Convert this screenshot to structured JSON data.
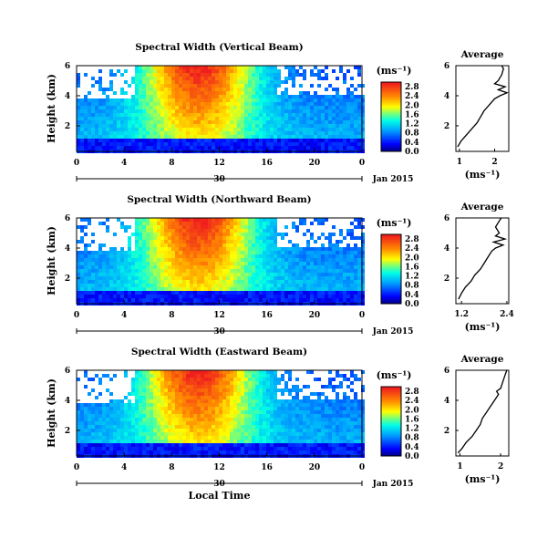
{
  "chart_data": [
    {
      "type": "heatmap",
      "title": "Spectral Width (Vertical Beam)",
      "ylabel": "Height (km)",
      "x_ticks": [
        "0",
        "4",
        "8",
        "12",
        "16",
        "20",
        "0"
      ],
      "y_ticks": [
        "2",
        "4",
        "6"
      ],
      "date_label": "30",
      "month_label": "Jan 2015",
      "colorbar": {
        "unit": "(ms⁻¹)",
        "ticks": [
          "0.0",
          "0.4",
          "0.8",
          "1.2",
          "1.6",
          "2.0",
          "2.4",
          "2.8"
        ],
        "range": [
          0,
          3.0
        ]
      },
      "average": {
        "title": "Average",
        "xlabel": "(ms⁻¹)",
        "x_ticks": [
          "1",
          "2"
        ],
        "y_ticks": [
          "2",
          "4",
          "6"
        ],
        "xlim": [
          0.9,
          2.4
        ],
        "profile": [
          [
            0.6,
            0.95
          ],
          [
            1.0,
            1.05
          ],
          [
            1.4,
            1.2
          ],
          [
            1.8,
            1.35
          ],
          [
            2.2,
            1.5
          ],
          [
            2.6,
            1.6
          ],
          [
            3.0,
            1.7
          ],
          [
            3.4,
            1.85
          ],
          [
            3.8,
            2.0
          ],
          [
            4.0,
            2.15
          ],
          [
            4.2,
            2.35
          ],
          [
            4.4,
            2.1
          ],
          [
            4.6,
            2.3
          ],
          [
            4.8,
            2.0
          ],
          [
            5.0,
            2.1
          ],
          [
            5.4,
            2.2
          ],
          [
            5.8,
            2.25
          ],
          [
            6.0,
            2.2
          ]
        ]
      }
    },
    {
      "type": "heatmap",
      "title": "Spectral Width (Northward Beam)",
      "ylabel": "Height (km)",
      "x_ticks": [
        "0",
        "4",
        "8",
        "12",
        "16",
        "20",
        "0"
      ],
      "y_ticks": [
        "2",
        "4",
        "6"
      ],
      "date_label": "30",
      "month_label": "Jan 2015",
      "colorbar": {
        "unit": "(ms⁻¹)",
        "ticks": [
          "0.0",
          "0.4",
          "0.8",
          "1.2",
          "1.6",
          "2.0",
          "2.4",
          "2.8"
        ],
        "range": [
          0,
          3.0
        ]
      },
      "average": {
        "title": "Average",
        "xlabel": "(ms⁻¹)",
        "x_ticks": [
          "1.2",
          "2.4"
        ],
        "y_ticks": [
          "2",
          "4",
          "6"
        ],
        "xlim": [
          1.05,
          2.45
        ],
        "profile": [
          [
            0.6,
            1.12
          ],
          [
            1.0,
            1.2
          ],
          [
            1.4,
            1.3
          ],
          [
            1.8,
            1.45
          ],
          [
            2.2,
            1.55
          ],
          [
            2.6,
            1.7
          ],
          [
            3.0,
            1.8
          ],
          [
            3.4,
            1.9
          ],
          [
            3.8,
            2.0
          ],
          [
            4.0,
            2.1
          ],
          [
            4.2,
            2.3
          ],
          [
            4.4,
            2.05
          ],
          [
            4.6,
            2.35
          ],
          [
            4.8,
            2.1
          ],
          [
            5.0,
            2.2
          ],
          [
            5.4,
            2.1
          ],
          [
            5.8,
            2.2
          ],
          [
            6.0,
            2.25
          ]
        ]
      }
    },
    {
      "type": "heatmap",
      "title": "Spectral Width (Eastward Beam)",
      "ylabel": "Height (km)",
      "x_ticks": [
        "0",
        "4",
        "8",
        "12",
        "16",
        "20",
        "0"
      ],
      "y_ticks": [
        "2",
        "4",
        "6"
      ],
      "date_label": "30",
      "month_label": "Jan 2015",
      "xlabel": "Local Time",
      "colorbar": {
        "unit": "(ms⁻¹)",
        "ticks": [
          "0.0",
          "0.4",
          "0.8",
          "1.2",
          "1.6",
          "2.0",
          "2.4",
          "2.8"
        ],
        "range": [
          0,
          3.0
        ]
      },
      "average": {
        "title": "Average",
        "xlabel": "(ms⁻¹)",
        "x_ticks": [
          "1",
          "2"
        ],
        "y_ticks": [
          "2",
          "4",
          "6"
        ],
        "xlim": [
          0.9,
          2.2
        ],
        "profile": [
          [
            0.5,
            0.95
          ],
          [
            0.8,
            1.05
          ],
          [
            1.2,
            1.15
          ],
          [
            1.6,
            1.3
          ],
          [
            2.0,
            1.4
          ],
          [
            2.4,
            1.5
          ],
          [
            2.8,
            1.55
          ],
          [
            3.2,
            1.65
          ],
          [
            3.6,
            1.75
          ],
          [
            4.0,
            1.85
          ],
          [
            4.4,
            1.95
          ],
          [
            4.6,
            1.9
          ],
          [
            4.8,
            2.0
          ],
          [
            5.2,
            2.05
          ],
          [
            5.6,
            2.1
          ],
          [
            6.0,
            2.15
          ]
        ]
      }
    }
  ]
}
